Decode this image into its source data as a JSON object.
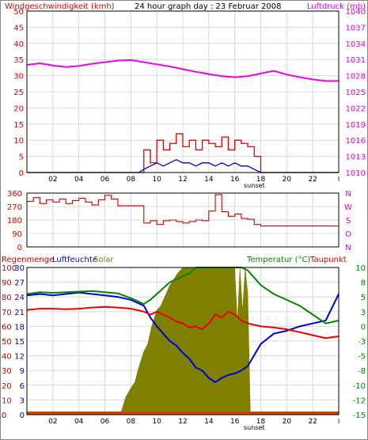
{
  "colors": {
    "wind_gust": "#dd0000",
    "wind_avg": "#0000cc",
    "pressure": "#ee00ee",
    "direction": "#cc0000",
    "humidity": "#0000dd",
    "temperature": "#008800",
    "dewpoint": "#ee0000",
    "solar": "#808000",
    "rain": "#cc4400",
    "grid": "#d8d8d8"
  },
  "chart_data": [
    {
      "type": "line",
      "title": "24 hour graph day : 23 Februar 2008",
      "ylabel_left": "Windgeschwindigkeit (kmh)",
      "ylabel_right": "Luftdruck (mb)",
      "x_ticks": [
        "02",
        "04",
        "06",
        "08",
        "10",
        "12",
        "14",
        "16",
        "18",
        "20",
        "22"
      ],
      "x_marker": "sunset",
      "y_ticks_left": [
        "0",
        "5",
        "10",
        "15",
        "20",
        "25",
        "30",
        "35",
        "40",
        "45",
        "50"
      ],
      "y_ticks_right": [
        "1010",
        "1013",
        "1016",
        "1019",
        "1022",
        "1025",
        "1028",
        "1031",
        "1034",
        "1037",
        "1040"
      ],
      "ylim_left": [
        0,
        50
      ],
      "ylim_right": [
        1010,
        1040
      ],
      "series": [
        {
          "name": "Luftdruck",
          "axis": "right",
          "x": [
            0,
            1,
            2,
            3,
            4,
            5,
            6,
            7,
            8,
            9,
            10,
            11,
            12,
            13,
            14,
            15,
            16,
            17,
            18,
            19,
            20,
            21,
            22,
            23,
            24
          ],
          "values": [
            1030.0,
            1030.3,
            1029.9,
            1029.6,
            1029.8,
            1030.2,
            1030.5,
            1030.8,
            1030.9,
            1030.5,
            1030.1,
            1029.7,
            1029.2,
            1028.7,
            1028.3,
            1027.9,
            1027.7,
            1027.9,
            1028.4,
            1028.9,
            1028.2,
            1027.7,
            1027.3,
            1027.0,
            1027.0
          ]
        },
        {
          "name": "Windgeschwindigkeit",
          "axis": "left",
          "x": [
            0,
            1,
            2,
            3,
            4,
            5,
            6,
            7,
            8,
            8.6,
            9,
            9.5,
            10,
            10.5,
            11,
            11.5,
            12,
            12.5,
            13,
            13.5,
            14,
            14.5,
            15,
            15.5,
            16,
            16.5,
            17,
            17.5,
            18,
            19,
            20,
            21,
            22,
            23,
            24
          ],
          "values": [
            0,
            0,
            0,
            0,
            0,
            0,
            0,
            0,
            0,
            0,
            7,
            3,
            10,
            7,
            9,
            12,
            8,
            10,
            7,
            10,
            9,
            8,
            11,
            7,
            10,
            9,
            8,
            5,
            0,
            0,
            0,
            0,
            0,
            0,
            0
          ]
        },
        {
          "name": "Windgeschwindigkeit (Mittel)",
          "axis": "left",
          "x": [
            0,
            1,
            2,
            3,
            4,
            5,
            6,
            7,
            8,
            8.6,
            9,
            9.5,
            10,
            10.5,
            11,
            11.5,
            12,
            12.5,
            13,
            13.5,
            14,
            14.5,
            15,
            15.5,
            16,
            16.5,
            17,
            17.5,
            18,
            19,
            20,
            21,
            22,
            23,
            24
          ],
          "values": [
            0,
            0,
            0,
            0,
            0,
            0,
            0,
            0,
            0,
            0,
            1,
            2,
            3,
            2,
            3,
            4,
            3,
            3,
            2,
            3,
            3,
            2,
            3,
            2,
            3,
            2,
            2,
            1,
            0,
            0,
            0,
            0,
            0,
            0,
            0
          ]
        }
      ]
    },
    {
      "type": "line",
      "ylabel_right_ticks": [
        "N",
        "W",
        "S",
        "O",
        "N"
      ],
      "y_ticks_left": [
        "0",
        "90",
        "180",
        "270",
        "360"
      ],
      "ylim": [
        0,
        360
      ],
      "series": [
        {
          "name": "Windrichtung",
          "x": [
            0,
            0.5,
            1,
            1.5,
            2,
            2.5,
            3,
            3.5,
            4,
            4.5,
            5,
            5.5,
            6,
            6.5,
            7,
            7.5,
            8,
            8.5,
            9,
            9.5,
            10,
            10.5,
            11,
            11.5,
            12,
            12.5,
            13,
            13.5,
            14,
            14.5,
            15,
            15.5,
            16,
            16.5,
            17,
            17.5,
            18,
            19,
            20,
            21,
            22,
            23,
            24
          ],
          "values": [
            305,
            330,
            290,
            315,
            300,
            320,
            290,
            310,
            325,
            300,
            280,
            315,
            345,
            320,
            275,
            275,
            275,
            275,
            160,
            175,
            150,
            175,
            180,
            170,
            160,
            170,
            180,
            175,
            240,
            350,
            235,
            205,
            220,
            190,
            185,
            150,
            140,
            140,
            140,
            140,
            140,
            140,
            140
          ]
        }
      ]
    },
    {
      "type": "line",
      "legend": [
        "Regenmenge",
        "Luftfeuchte",
        "Solar",
        "Temperatur (°C)",
        "Taupunkt"
      ],
      "x_ticks": [
        "02",
        "04",
        "06",
        "08",
        "10",
        "12",
        "14",
        "16",
        "18",
        "20",
        "22"
      ],
      "x_marker": "sunset",
      "y_ticks_humidity": [
        "0",
        "10",
        "20",
        "30",
        "40",
        "50",
        "60",
        "70",
        "80",
        "90",
        "100"
      ],
      "y_ticks_dewpoint": [
        "0",
        "3",
        "6",
        "9",
        "12",
        "15",
        "18",
        "21",
        "24",
        "27",
        "30"
      ],
      "y_ticks_temp": [
        "-15",
        "-12",
        "-10",
        "-8",
        "-5",
        "-3",
        "0",
        "3",
        "5",
        "8",
        "10"
      ],
      "ylim_humidity": [
        0,
        100
      ],
      "ylim_temp": [
        -15,
        10
      ],
      "series": [
        {
          "name": "Luftfeuchte",
          "axis": "humidity",
          "x": [
            0,
            1,
            2,
            3,
            4,
            5,
            6,
            7,
            8,
            9,
            9.5,
            10,
            10.5,
            11,
            11.5,
            12,
            12.5,
            13,
            13.5,
            14,
            14.5,
            15,
            15.5,
            16,
            16.5,
            17,
            18,
            19,
            20,
            21,
            22,
            23,
            24
          ],
          "values": [
            81,
            82,
            81,
            82,
            83,
            82,
            81,
            80,
            78,
            74,
            66,
            60,
            55,
            50,
            47,
            42,
            38,
            32,
            30,
            25,
            22,
            25,
            27,
            28,
            30,
            33,
            48,
            55,
            57,
            60,
            62,
            64,
            82
          ]
        },
        {
          "name": "Temperatur (°C)",
          "axis": "temp",
          "x": [
            0,
            1,
            2,
            3,
            4,
            5,
            6,
            7,
            8,
            9,
            9.5,
            10,
            10.5,
            11,
            11.5,
            12,
            12.5,
            13,
            13.5,
            14,
            14.5,
            15,
            15.5,
            16,
            16.5,
            17,
            18,
            19,
            20,
            21,
            22,
            23,
            24
          ],
          "values": [
            5.5,
            5.8,
            5.7,
            5.8,
            5.9,
            6.0,
            5.8,
            5.6,
            4.8,
            3.8,
            4.5,
            5.5,
            6.5,
            7.5,
            8.0,
            8.5,
            9.0,
            10,
            10,
            10,
            10,
            10,
            10,
            10,
            10,
            9.5,
            7.0,
            5.5,
            4.5,
            3.5,
            2.0,
            0.5,
            1.0
          ]
        },
        {
          "name": "Taupunkt",
          "axis": "temp",
          "x": [
            0,
            1,
            2,
            3,
            4,
            5,
            6,
            7,
            8,
            9,
            9.5,
            10,
            10.5,
            11,
            11.5,
            12,
            12.5,
            13,
            13.5,
            14,
            14.5,
            15,
            15.5,
            16,
            16.5,
            17,
            18,
            19,
            20,
            21,
            22,
            23,
            24
          ],
          "values": [
            2.8,
            3.0,
            3.0,
            2.9,
            3.0,
            3.2,
            3.3,
            3.2,
            3.0,
            2.5,
            2.0,
            2.5,
            2.0,
            1.5,
            0.8,
            0.5,
            -0.2,
            0.0,
            -0.5,
            0.5,
            2.0,
            1.5,
            2.5,
            2.0,
            1.0,
            0.5,
            0.0,
            -0.2,
            -0.5,
            -1.0,
            -1.5,
            -2.0,
            -1.7
          ]
        },
        {
          "name": "Solar",
          "axis": "humidity",
          "fill": true,
          "x": [
            0,
            6,
            7,
            7.3,
            7.6,
            8,
            8.3,
            8.6,
            9,
            9.3,
            9.6,
            10,
            10.3,
            10.6,
            11,
            11.3,
            11.6,
            12,
            12.5,
            13,
            14,
            15,
            16,
            16.2,
            16.4,
            16.6,
            16.8,
            17,
            17.2,
            18,
            24
          ],
          "values": [
            0,
            0,
            0,
            3,
            12,
            18,
            22,
            32,
            43,
            48,
            60,
            71,
            74,
            80,
            88,
            92,
            96,
            100,
            100,
            100,
            100,
            100,
            100,
            62,
            100,
            70,
            100,
            82,
            0,
            0,
            0
          ]
        },
        {
          "name": "Regenmenge",
          "axis": "dewpoint",
          "x": [
            0,
            24
          ],
          "values": [
            0,
            0
          ]
        }
      ]
    }
  ]
}
